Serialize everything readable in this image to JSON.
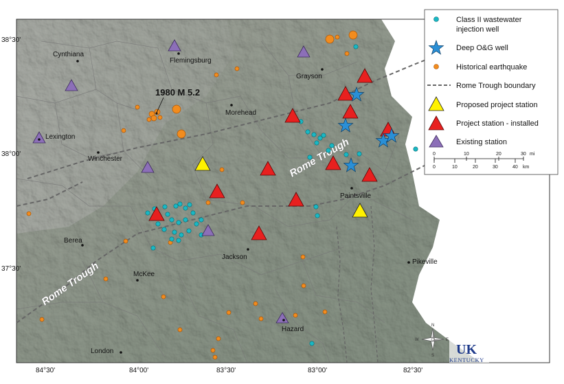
{
  "latitude_labels": [
    "38°30'",
    "38°00'",
    "37°30'"
  ],
  "longitude_labels": [
    "84°30'",
    "84°00'",
    "83°30'",
    "83°00'",
    "82°30'"
  ],
  "cities": [
    {
      "name": "Cynthiana"
    },
    {
      "name": "Flemingsburg"
    },
    {
      "name": "Grayson"
    },
    {
      "name": "Morehead"
    },
    {
      "name": "Lexington"
    },
    {
      "name": "Winchester"
    },
    {
      "name": "Paintsville"
    },
    {
      "name": "Berea"
    },
    {
      "name": "Jackson"
    },
    {
      "name": "Pikeville"
    },
    {
      "name": "McKee"
    },
    {
      "name": "Hazard"
    },
    {
      "name": "London"
    }
  ],
  "earthquake_annotation": "1980 M 5.2",
  "rome_trough_labels": [
    "Rome Trough",
    "Rome Trough"
  ],
  "legend": {
    "injection_well": "Class II wastewater injection well",
    "deep_well": "Deep O&G well",
    "earthquake": "Historical earthquake",
    "rome_boundary": "Rome Trough boundary",
    "proposed_station": "Proposed project station",
    "installed_station": "Project station - installed",
    "existing_station": "Existing station"
  },
  "scale_bar": {
    "miles_unit": "mi",
    "km_unit": "km",
    "miles_ticks": [
      "0",
      "10",
      "20",
      "30"
    ],
    "km_ticks": [
      "0",
      "10",
      "20",
      "30",
      "40"
    ]
  },
  "compass": {
    "n": "N",
    "s": "S",
    "e": "E",
    "w": "W"
  },
  "logo": {
    "letters": "UK",
    "name": "KENTUCKY"
  },
  "colors": {
    "injection_well": "#19b8c4",
    "deep_well": "#2a8fd6",
    "earthquake": "#f28c1e",
    "installed_station": "#e8201f",
    "proposed_station": "#fff200",
    "existing_station": "#8c6fb8",
    "rome_boundary": "#666666",
    "terrain": "#c5cfc0"
  }
}
